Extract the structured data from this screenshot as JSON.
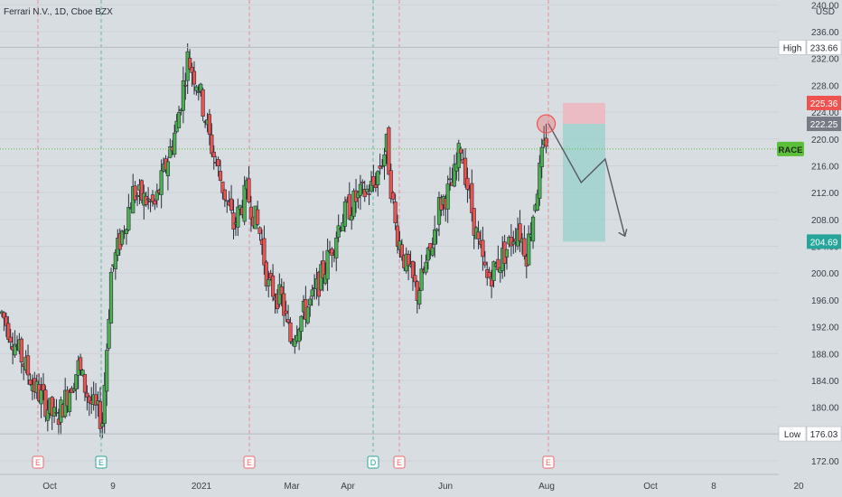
{
  "header": {
    "symbol_text": "Ferrari N.V., 1D, Cboe BZX",
    "currency": "USD"
  },
  "colors": {
    "background": "#d8dde2",
    "up": "#4caf50",
    "down": "#ef5350",
    "earnings_line": "#f06a6a",
    "dividend_line": "#26a69a",
    "tp_zone": "#9fd1cc",
    "sl_zone": "#eeb6bd",
    "current_price": "#5cbf3c",
    "label_dark": "#787b86",
    "tp_label": "#26a69a",
    "sl_label": "#ef5350",
    "projection": "#555a63"
  },
  "chart_data": {
    "type": "candlestick",
    "title": "Ferrari N.V., 1D, Cboe BZX",
    "ylabel": "USD",
    "ylim": [
      170,
      240
    ],
    "y_ticks": [
      "240.00",
      "236.00",
      "232.00",
      "228.00",
      "224.00",
      "220.00",
      "216.00",
      "212.00",
      "208.00",
      "204.00",
      "200.00",
      "196.00",
      "192.00",
      "188.00",
      "184.00",
      "180.00",
      "176.00",
      "172.00"
    ],
    "x_ticks": [
      "Oct",
      "9",
      "2021",
      "Mar",
      "Apr",
      "Jun",
      "Aug",
      "Oct",
      "8",
      "20"
    ],
    "ohlc_key": {
      "start": 188,
      "drift": 0.35,
      "seed": 7,
      "anchors": [
        {
          "i": 0,
          "v": 194
        },
        {
          "i": 15,
          "v": 183
        },
        {
          "i": 25,
          "v": 178
        },
        {
          "i": 35,
          "v": 186
        },
        {
          "i": 40,
          "v": 181
        },
        {
          "i": 46,
          "v": 178
        },
        {
          "i": 50,
          "v": 200
        },
        {
          "i": 55,
          "v": 206
        },
        {
          "i": 60,
          "v": 212
        },
        {
          "i": 70,
          "v": 210
        },
        {
          "i": 80,
          "v": 222
        },
        {
          "i": 85,
          "v": 232
        },
        {
          "i": 90,
          "v": 228
        },
        {
          "i": 95,
          "v": 220
        },
        {
          "i": 100,
          "v": 214
        },
        {
          "i": 106,
          "v": 207
        },
        {
          "i": 112,
          "v": 212
        },
        {
          "i": 118,
          "v": 206
        },
        {
          "i": 122,
          "v": 198
        },
        {
          "i": 128,
          "v": 196
        },
        {
          "i": 132,
          "v": 190
        },
        {
          "i": 136,
          "v": 193
        },
        {
          "i": 142,
          "v": 196
        },
        {
          "i": 148,
          "v": 201
        },
        {
          "i": 155,
          "v": 208
        },
        {
          "i": 162,
          "v": 211
        },
        {
          "i": 170,
          "v": 213
        },
        {
          "i": 176,
          "v": 219
        },
        {
          "i": 180,
          "v": 207
        },
        {
          "i": 185,
          "v": 201
        },
        {
          "i": 190,
          "v": 197
        },
        {
          "i": 196,
          "v": 203
        },
        {
          "i": 200,
          "v": 210
        },
        {
          "i": 206,
          "v": 213
        },
        {
          "i": 210,
          "v": 219
        },
        {
          "i": 214,
          "v": 211
        },
        {
          "i": 218,
          "v": 204
        },
        {
          "i": 222,
          "v": 199
        },
        {
          "i": 230,
          "v": 203
        },
        {
          "i": 236,
          "v": 207
        },
        {
          "i": 240,
          "v": 203
        },
        {
          "i": 244,
          "v": 211
        },
        {
          "i": 247,
          "v": 217
        },
        {
          "i": 249,
          "v": 220
        }
      ]
    },
    "price_labels": [
      {
        "name": "high-label",
        "tag": "High",
        "value": 233.66
      },
      {
        "name": "sl-label",
        "tag": "",
        "value": 225.36
      },
      {
        "name": "entry-label",
        "tag": "",
        "value": 222.25
      },
      {
        "name": "tp-label",
        "tag": "",
        "value": 204.69
      },
      {
        "name": "low-label",
        "tag": "Low",
        "value": 176.03
      }
    ],
    "current_symbol": "RACE",
    "current_price": 218.5,
    "position": {
      "entry": 222.25,
      "stop": 225.36,
      "target": 204.69
    },
    "events": [
      {
        "type": "E",
        "date": "Sep 28"
      },
      {
        "type": "E",
        "date": "Nov 3"
      },
      {
        "type": "E",
        "date": "Feb 2"
      },
      {
        "type": "D",
        "date": "Apr 15"
      },
      {
        "type": "E",
        "date": "May 4"
      },
      {
        "type": "E",
        "date": "Aug 2"
      }
    ]
  }
}
